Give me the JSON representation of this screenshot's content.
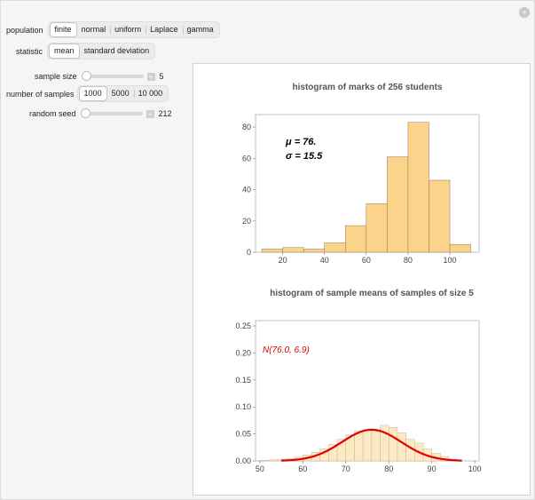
{
  "controls": {
    "population": {
      "label": "population",
      "options": [
        "finite",
        "normal",
        "uniform",
        "Laplace",
        "gamma"
      ],
      "selected": "finite"
    },
    "statistic": {
      "label": "statistic",
      "options": [
        "mean",
        "standard deviation"
      ],
      "selected": "mean"
    },
    "sample_size": {
      "label": "sample size",
      "value": "5",
      "fraction": 0.0
    },
    "number_of_samples": {
      "label": "number of samples",
      "options": [
        "1000",
        "5000",
        "10 000"
      ],
      "selected": "1000"
    },
    "random_seed": {
      "label": "random seed",
      "value": "212",
      "fraction": 0.0
    },
    "reset_icon": "plus-circle-icon"
  },
  "colors": {
    "bar_fill": "#fcd38a",
    "bar_stroke": "#8a7a60",
    "sample_bar_fill": "#fde9c3",
    "curve": "#e00000"
  },
  "chart_data": [
    {
      "type": "bar",
      "title": "histogram of marks of 256 students",
      "bin_edges": [
        10,
        20,
        30,
        40,
        50,
        60,
        70,
        80,
        90,
        100,
        110
      ],
      "values": [
        2,
        3,
        2,
        6,
        17,
        31,
        61,
        83,
        46,
        5
      ],
      "xticks": [
        "20",
        "40",
        "60",
        "80",
        "100"
      ],
      "yticks": [
        "0",
        "20",
        "40",
        "60",
        "80"
      ],
      "xlim": [
        7,
        114
      ],
      "ylim": [
        0,
        88
      ],
      "annotation_mu": "μ = 76.",
      "annotation_sigma": "σ = 15.5",
      "grid": false
    },
    {
      "type": "bar",
      "title": "histogram of sample means of samples of size 5",
      "bin_edges": [
        50,
        52,
        54,
        56,
        58,
        60,
        62,
        64,
        66,
        68,
        70,
        72,
        74,
        76,
        78,
        80,
        82,
        84,
        86,
        88,
        90,
        92,
        94,
        96
      ],
      "values": [
        0.001,
        0.002,
        0.003,
        0.004,
        0.007,
        0.011,
        0.016,
        0.022,
        0.031,
        0.04,
        0.048,
        0.055,
        0.058,
        0.055,
        0.066,
        0.062,
        0.052,
        0.04,
        0.033,
        0.022,
        0.014,
        0.008,
        0.003
      ],
      "curve_label": "N(76.0, 6.9)",
      "curve_mean": 76.0,
      "curve_sd": 6.9,
      "curve_range": [
        55,
        97
      ],
      "xticks": [
        "50",
        "60",
        "70",
        "80",
        "90",
        "100"
      ],
      "yticks": [
        "0.00",
        "0.05",
        "0.10",
        "0.15",
        "0.20",
        "0.25"
      ],
      "xlim": [
        49,
        101
      ],
      "ylim": [
        0,
        0.26
      ],
      "grid": false
    }
  ]
}
